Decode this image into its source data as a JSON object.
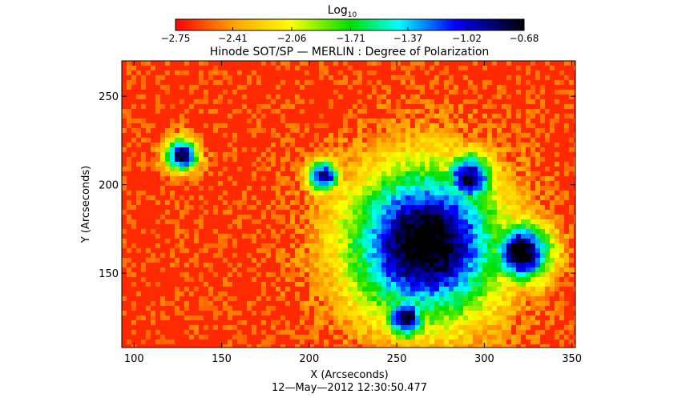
{
  "chart_data": {
    "type": "heatmap",
    "title": "Hinode SOT/SP — MERLIN : Degree of Polarization",
    "xlabel": "X (Arcseconds)",
    "ylabel": "Y (Arcseconds)",
    "xlim": [
      93,
      352
    ],
    "ylim": [
      108,
      270
    ],
    "x_ticks": [
      100,
      150,
      200,
      250,
      300,
      350
    ],
    "y_ticks": [
      150,
      200,
      250
    ],
    "date_label": "12—May—2012 12:30:50.477",
    "colorbar": {
      "label_main": "Log",
      "label_sub": "10",
      "ticks": [
        -2.75,
        -2.41,
        -2.06,
        -1.71,
        -1.37,
        -1.02,
        -0.68
      ],
      "tick_labels": [
        "−2.75",
        "−2.41",
        "−2.06",
        "−1.71",
        "−1.37",
        "−1.02",
        "−0.68"
      ],
      "range": [
        -2.75,
        -0.68
      ],
      "colormap": [
        "#ff0000",
        "#ffa500",
        "#ffff00",
        "#00e000",
        "#00ffff",
        "#0000ff",
        "#000000"
      ]
    },
    "features": [
      {
        "name": "sunspot-main",
        "x": 265,
        "y": 168,
        "level": -0.68
      },
      {
        "name": "sunspot-east",
        "x": 320,
        "y": 163,
        "level": -0.75
      },
      {
        "name": "pore-west",
        "x": 126,
        "y": 218,
        "level": -0.85
      },
      {
        "name": "pore-south",
        "x": 254,
        "y": 126,
        "level": -0.85
      },
      {
        "name": "pore-north",
        "x": 290,
        "y": 205,
        "level": -0.9
      },
      {
        "name": "pore-central",
        "x": 207,
        "y": 206,
        "level": -0.95
      }
    ]
  }
}
